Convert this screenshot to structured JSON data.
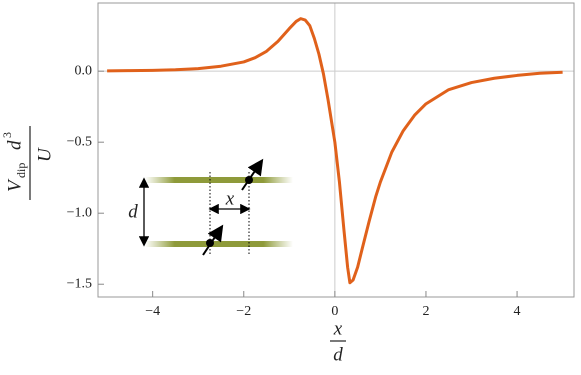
{
  "chart_data": {
    "type": "line",
    "ylabel_parts": [
      "V",
      "dip",
      "d",
      "3",
      "U"
    ],
    "xlabel_parts": [
      "x",
      "d"
    ],
    "inset_labels": [
      "d",
      "x"
    ],
    "x": [
      -5,
      -4.5,
      -4,
      -3.5,
      -3,
      -2.5,
      -2,
      -1.75,
      -1.5,
      -1.25,
      -1,
      -0.85,
      -0.75,
      -0.65,
      -0.55,
      -0.45,
      -0.35,
      -0.25,
      -0.15,
      -0.05,
      0,
      0.1,
      0.2,
      0.28,
      0.33,
      0.4,
      0.5,
      0.6,
      0.75,
      0.9,
      1,
      1.25,
      1.5,
      1.75,
      2,
      2.5,
      3,
      3.5,
      4,
      4.5,
      5
    ],
    "series": [
      {
        "color": "#e0611b",
        "values": [
          0.002,
          0.004,
          0.006,
          0.01,
          0.018,
          0.035,
          0.065,
          0.095,
          0.14,
          0.21,
          0.3,
          0.35,
          0.37,
          0.36,
          0.32,
          0.23,
          0.12,
          -0.02,
          -0.2,
          -0.4,
          -0.5,
          -0.78,
          -1.12,
          -1.38,
          -1.49,
          -1.47,
          -1.38,
          -1.25,
          -1.06,
          -0.88,
          -0.78,
          -0.57,
          -0.42,
          -0.31,
          -0.23,
          -0.13,
          -0.08,
          -0.05,
          -0.03,
          -0.015,
          -0.008
        ]
      }
    ],
    "xlim": [
      -5.2,
      5.25
    ],
    "ylim": [
      -1.59,
      0.48
    ],
    "xticks": [
      {
        "value": -4,
        "label": "−4"
      },
      {
        "value": -2,
        "label": "−2"
      },
      0,
      2,
      4
    ],
    "yticks": [
      {
        "value": 0,
        "label": "0.0"
      },
      {
        "value": -0.5,
        "label": "−0.5"
      },
      {
        "value": -1,
        "label": "−1.0"
      },
      {
        "value": -1.5,
        "label": "−1.5"
      }
    ]
  }
}
